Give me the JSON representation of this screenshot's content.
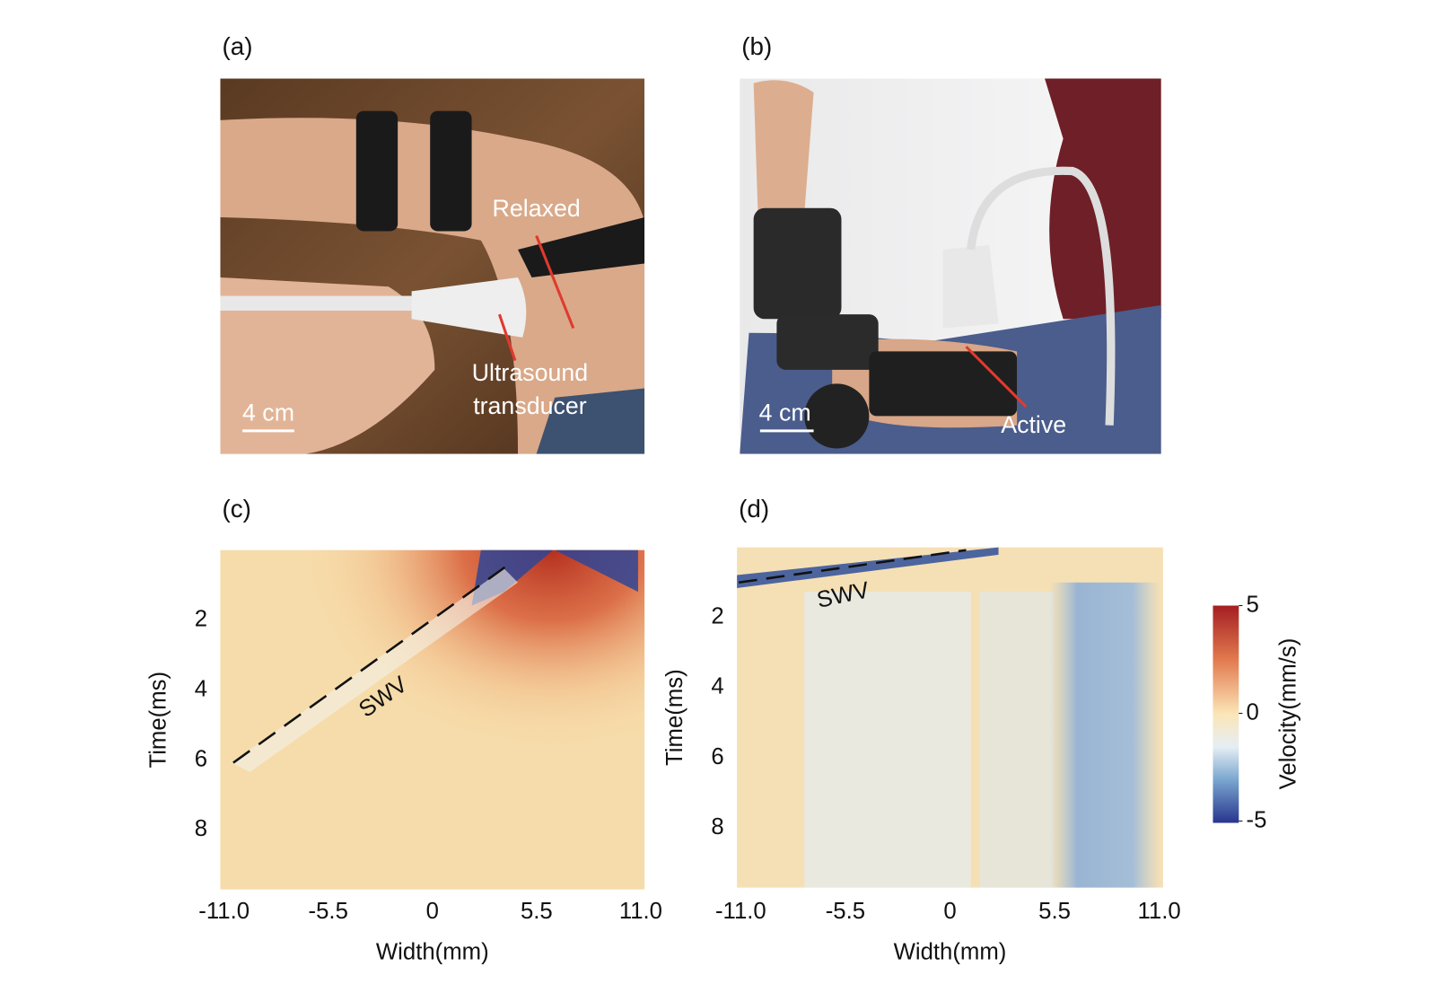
{
  "panels": {
    "a": {
      "label": "(a)",
      "scale_bar": "4 cm",
      "annotations": {
        "relaxed": "Relaxed",
        "transducer": [
          "Ultrasound",
          "transducer"
        ]
      }
    },
    "b": {
      "label": "(b)",
      "scale_bar": "4 cm",
      "annotations": {
        "active": "Active"
      }
    }
  },
  "chart_data": [
    {
      "type": "heatmap",
      "label": "(c)",
      "x_label": "Width(mm)",
      "y_label": "Time(ms)",
      "annotation": "SWV",
      "xlim": [
        -11.2,
        11.2
      ],
      "ylim": [
        0,
        9.7
      ],
      "xticks": [
        {
          "value": -11,
          "label": "-11.0"
        },
        {
          "value": -5.5,
          "label": "-5.5"
        },
        0,
        5.5,
        {
          "value": 11,
          "label": "11.0"
        }
      ],
      "yticks": [
        2,
        4,
        6,
        8
      ]
    },
    {
      "type": "heatmap",
      "label": "(d)",
      "x_label": "Width(mm)",
      "y_label": "Time(ms)",
      "annotation": "SWV",
      "xlim": [
        -11.2,
        11.2
      ],
      "ylim": [
        0,
        9.7
      ],
      "xticks": [
        {
          "value": -11,
          "label": "-11.0"
        },
        {
          "value": -5.5,
          "label": "-5.5"
        },
        0,
        5.5,
        {
          "value": 11,
          "label": "11.0"
        }
      ],
      "yticks": [
        2,
        4,
        6,
        8
      ],
      "colorbar": {
        "label": "Velocity(mm/s)",
        "lim": [
          -5,
          5
        ],
        "ticks": [
          5,
          0,
          -5
        ]
      }
    }
  ]
}
